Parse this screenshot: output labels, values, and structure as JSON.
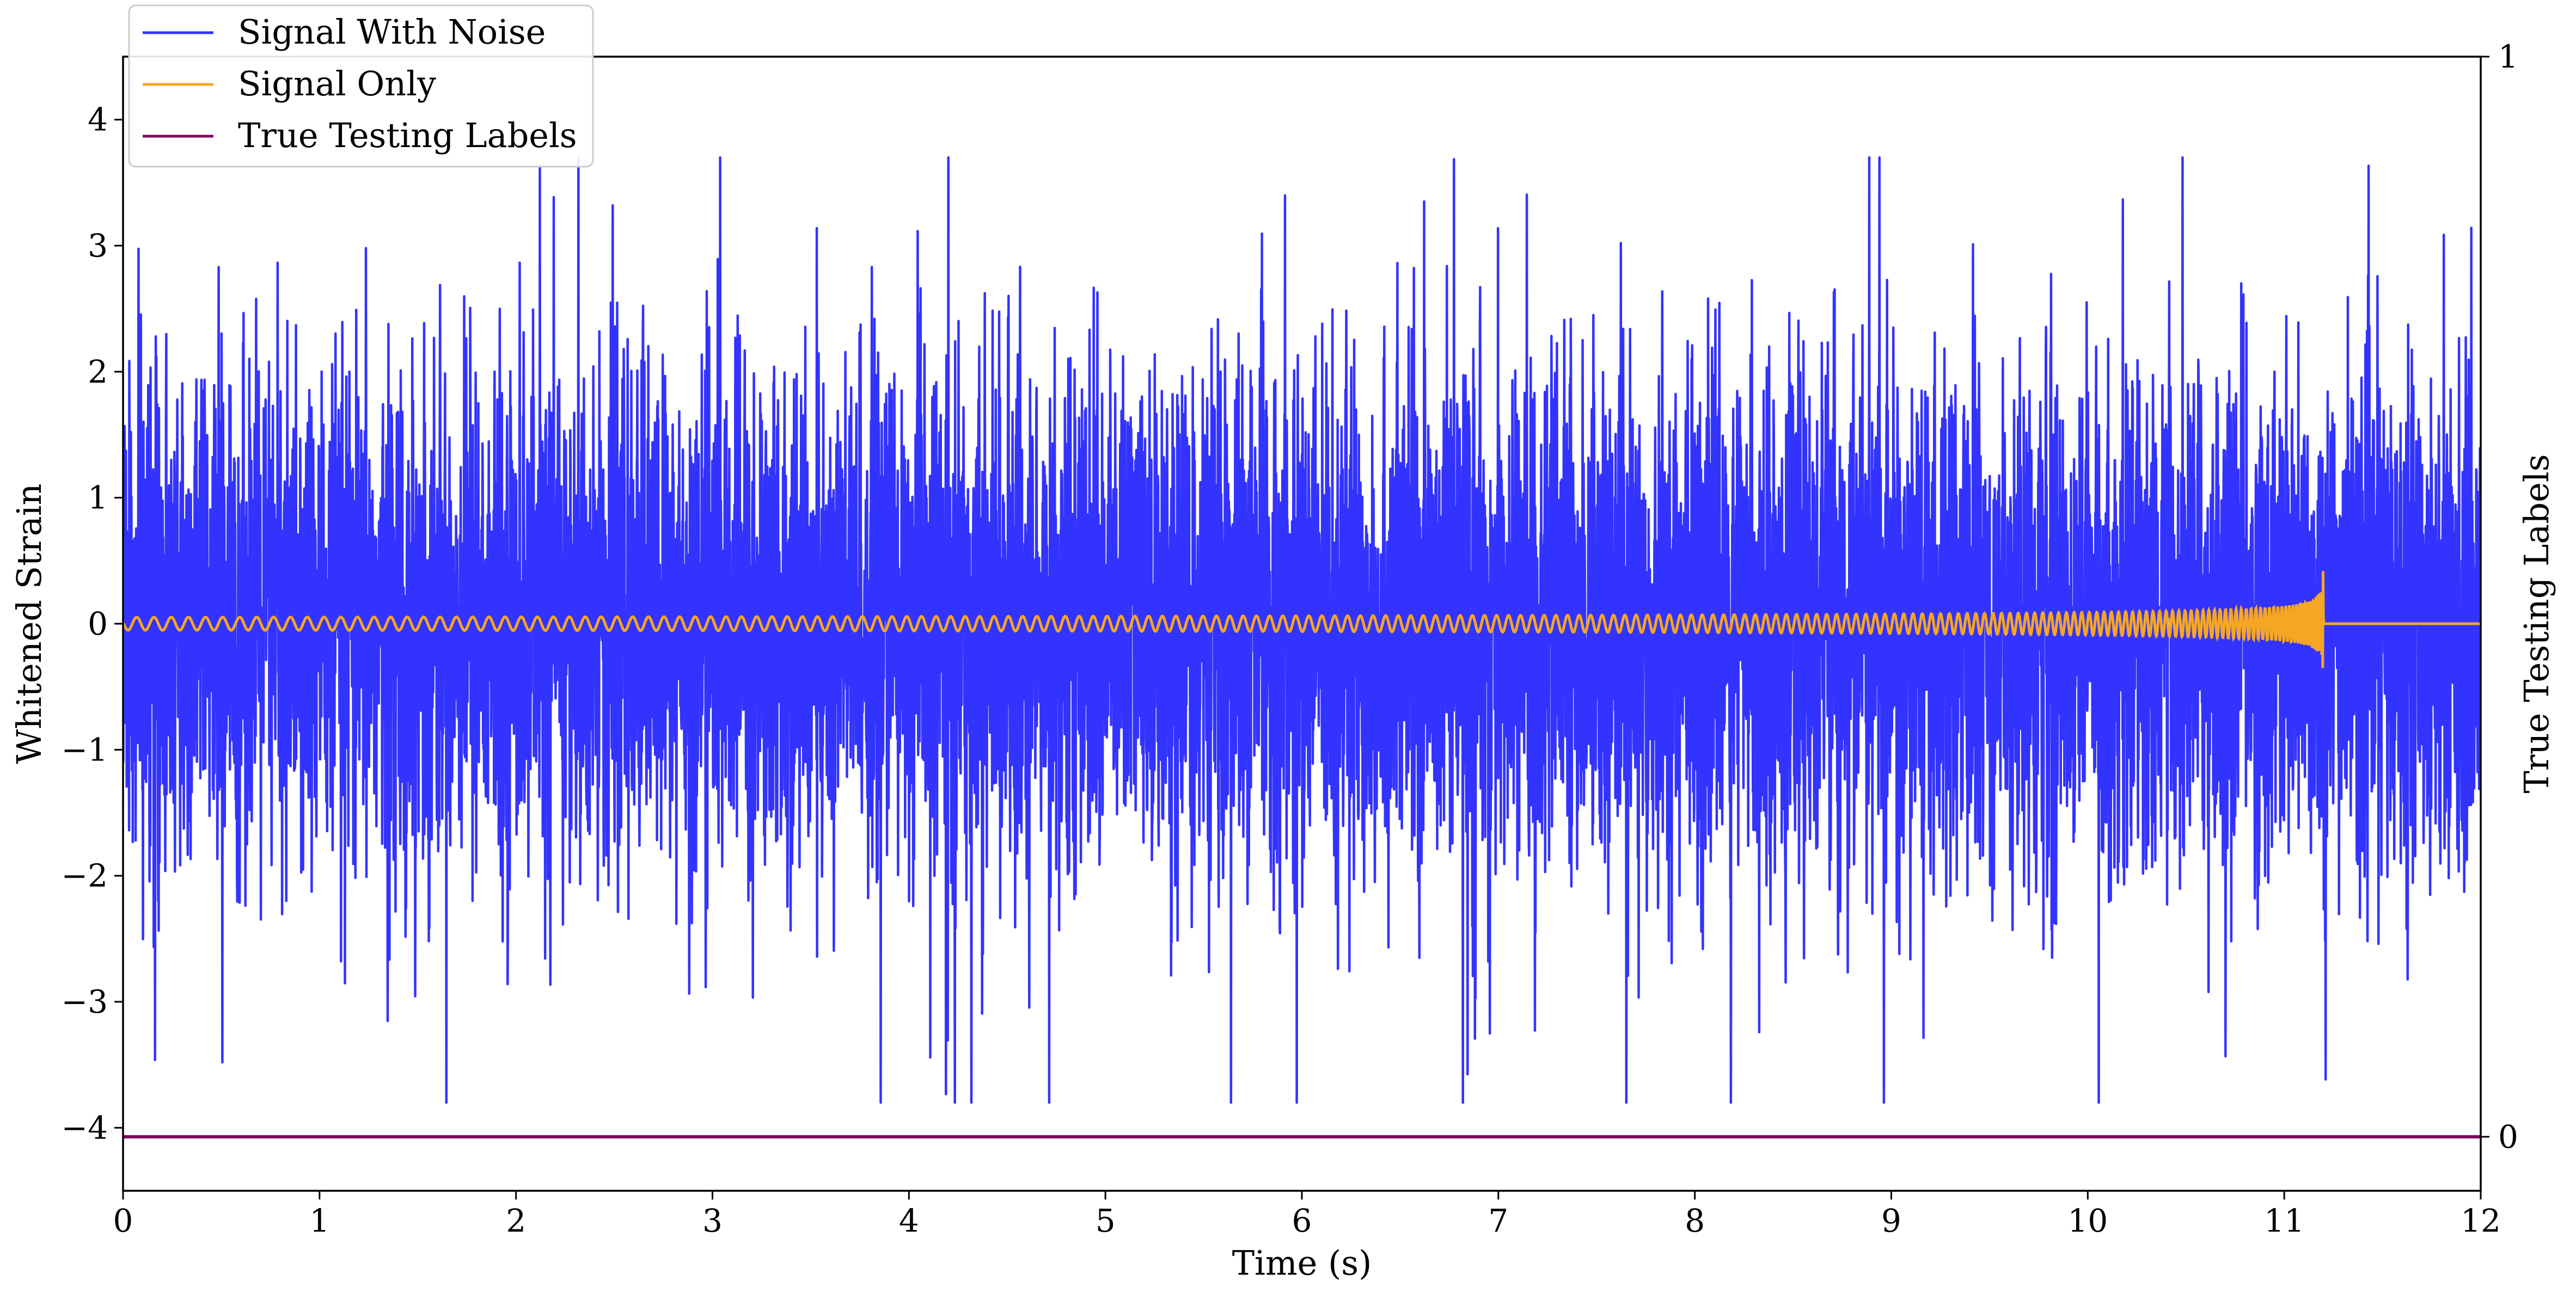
{
  "chart_data": {
    "type": "line",
    "xlabel": "Time (s)",
    "ylabel": "Whitened Strain",
    "y2label": "True Testing Labels",
    "xlim": [
      0,
      12
    ],
    "ylim": [
      -4.5,
      4.5
    ],
    "y2lim": [
      -0.05,
      1.0
    ],
    "x_ticks": [
      "0",
      "1",
      "2",
      "3",
      "4",
      "5",
      "6",
      "7",
      "8",
      "9",
      "10",
      "11",
      "12"
    ],
    "y_ticks": [
      "−4",
      "−3",
      "−2",
      "−1",
      "0",
      "1",
      "2",
      "3",
      "4"
    ],
    "y2_ticks": [
      "0",
      "1"
    ],
    "legend_position": "top-left",
    "series": [
      {
        "name": "Signal With Noise",
        "color": "#3333ff",
        "description_values": {
          "x_range": [
            0,
            12
          ],
          "y_range": [
            -3.8,
            3.7
          ],
          "typical_std": 1.0
        }
      },
      {
        "name": "Signal Only",
        "color": "#f5a623",
        "chirp": {
          "start": 0,
          "merger_time": 11.2,
          "peak_amplitude": 0.48,
          "post_merger_value": 0
        }
      },
      {
        "name": "True Testing Labels",
        "color": "#800060",
        "x": [
          0,
          12
        ],
        "y": [
          0,
          0
        ],
        "axis": "right"
      }
    ]
  }
}
